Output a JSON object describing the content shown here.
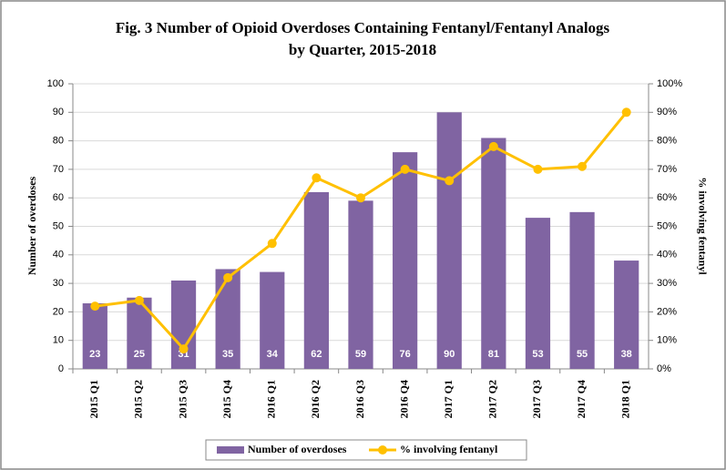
{
  "chart_data": {
    "type": "bar",
    "title": [
      "Fig. 3 Number of Opioid Overdoses Containing Fentanyl/Fentanyl Analogs",
      "by Quarter, 2015-2018"
    ],
    "y_label": "Number  of overdoses",
    "y2_label": "% involving  fentanyl",
    "categories": [
      "2015 Q1",
      "2015 Q2",
      "2015 Q3",
      "2015 Q4",
      "2016 Q1",
      "2016 Q2",
      "2016 Q3",
      "2016 Q4",
      "2017 Q1",
      "2017 Q2",
      "2017 Q3",
      "2017 Q4",
      "2018 Q1"
    ],
    "series": [
      {
        "name": "Number of overdoses",
        "color": "#8064a2",
        "values": [
          23,
          25,
          31,
          35,
          34,
          62,
          59,
          76,
          90,
          81,
          53,
          55,
          38
        ]
      },
      {
        "name": "% involving fentanyl",
        "color": "#ffc000",
        "axis": "y2",
        "type": "line",
        "values": [
          22,
          24,
          7,
          32,
          44,
          67,
          60,
          70,
          66,
          78,
          70,
          71,
          90
        ]
      }
    ],
    "ylim": [
      0,
      100
    ],
    "yticks": [
      0,
      10,
      20,
      30,
      40,
      50,
      60,
      70,
      80,
      90,
      100
    ],
    "y2lim": [
      0,
      100
    ],
    "y2ticks": [
      {
        "value": 0,
        "label": "0%"
      },
      {
        "value": 10,
        "label": "10%"
      },
      {
        "value": 20,
        "label": "20%"
      },
      {
        "value": 30,
        "label": "30%"
      },
      {
        "value": 40,
        "label": "40%"
      },
      {
        "value": 50,
        "label": "50%"
      },
      {
        "value": 60,
        "label": "60%"
      },
      {
        "value": 70,
        "label": "70%"
      },
      {
        "value": 80,
        "label": "80%"
      },
      {
        "value": 90,
        "label": "90%"
      },
      {
        "value": 100,
        "label": "100%"
      }
    ],
    "grid": true,
    "legend": "bottom"
  }
}
